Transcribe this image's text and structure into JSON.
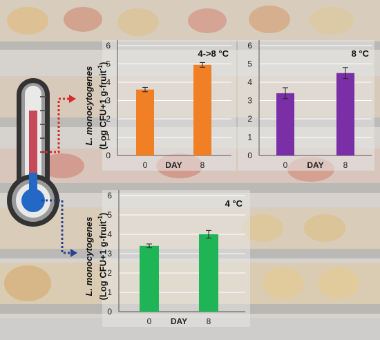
{
  "chart_data": [
    {
      "type": "bar",
      "title": "4->8 °C",
      "xlabel": "DAY",
      "ylabel_species": "L. monocytogenes",
      "ylabel_unit": "(Log CFU+1 g-fruit",
      "ylabel_sup": "-1",
      "ylabel_close": ")",
      "categories": [
        "0",
        "8"
      ],
      "values": [
        3.6,
        4.95
      ],
      "errors": [
        0.12,
        0.13
      ],
      "ylim": [
        0,
        6
      ],
      "yticks": [
        "0",
        "1",
        "2",
        "3",
        "4",
        "5",
        "6"
      ],
      "grid": true,
      "color": "#f07f25"
    },
    {
      "type": "bar",
      "title": "8 °C",
      "xlabel": "DAY",
      "categories": [
        "0",
        "8"
      ],
      "values": [
        3.4,
        4.5
      ],
      "errors": [
        0.3,
        0.3
      ],
      "ylim": [
        0,
        6
      ],
      "yticks": [
        "0",
        "1",
        "2",
        "3",
        "4",
        "5",
        "6"
      ],
      "grid": true,
      "color": "#7a2fa6"
    },
    {
      "type": "bar",
      "title": "4 °C",
      "xlabel": "DAY",
      "ylabel_species": "L. monocytogenes",
      "ylabel_unit": "(Log CFU+1 g-fruit",
      "ylabel_sup": "-1",
      "ylabel_close": ")",
      "categories": [
        "0",
        "8"
      ],
      "values": [
        3.4,
        4.0
      ],
      "errors": [
        0.1,
        0.2
      ],
      "ylim": [
        0,
        6
      ],
      "yticks": [
        "0",
        "1",
        "2",
        "3",
        "4",
        "5",
        "6"
      ],
      "grid": true,
      "color": "#1fb556"
    }
  ],
  "colors": {
    "thermometer_red": "#c44a5a",
    "thermometer_blue": "#2268c4",
    "arrow_red": "#d42a2a",
    "arrow_blue": "#2a3f8f"
  }
}
